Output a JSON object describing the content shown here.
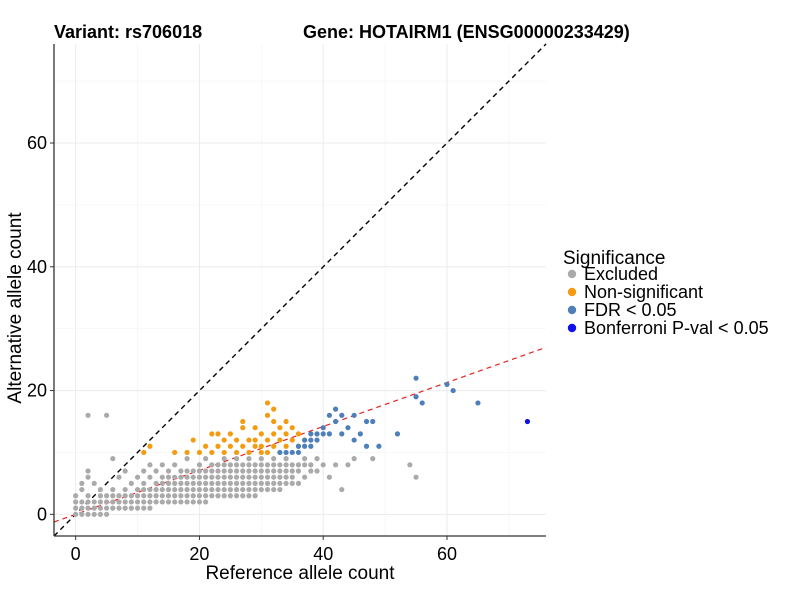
{
  "chart_data": {
    "type": "scatter",
    "title_left": "Variant: rs706018",
    "title_right": "Gene: HOTAIRM1 (ENSG00000233429)",
    "xlabel": "Reference allele count",
    "ylabel": "Alternative allele count",
    "xlim": [
      -3.5,
      76
    ],
    "ylim": [
      -3.5,
      76
    ],
    "x_ticks": [
      0,
      20,
      40,
      60
    ],
    "y_ticks": [
      0,
      20,
      40,
      60
    ],
    "grid": true,
    "reference_lines": [
      {
        "name": "identity",
        "slope": 1,
        "intercept": 0,
        "color": "#000000",
        "style": "dashed"
      },
      {
        "name": "fit",
        "slope": 0.355,
        "intercept": 0,
        "color": "#e8231f",
        "style": "dashed"
      }
    ],
    "legend": {
      "title": "Significance",
      "position": "right",
      "entries": [
        {
          "label": "Excluded",
          "color": "#aaaaaa"
        },
        {
          "label": "Non-significant",
          "color": "#f39c12"
        },
        {
          "label": "FDR < 0.05",
          "color": "#4f7fb8"
        },
        {
          "label": "Bonferroni P-val < 0.05",
          "color": "#1010e8"
        }
      ]
    },
    "series": [
      {
        "name": "Excluded",
        "color": "#aaaaaa",
        "points": [
          [
            0,
            0
          ],
          [
            0,
            1
          ],
          [
            0,
            2
          ],
          [
            0,
            3
          ],
          [
            1,
            0
          ],
          [
            1,
            1
          ],
          [
            1,
            2
          ],
          [
            1,
            4
          ],
          [
            1,
            5
          ],
          [
            2,
            0
          ],
          [
            2,
            1
          ],
          [
            2,
            2
          ],
          [
            2,
            3
          ],
          [
            2,
            6
          ],
          [
            2,
            7
          ],
          [
            2,
            16
          ],
          [
            3,
            0
          ],
          [
            3,
            1
          ],
          [
            3,
            2
          ],
          [
            3,
            5
          ],
          [
            4,
            0
          ],
          [
            4,
            1
          ],
          [
            4,
            2
          ],
          [
            4,
            3
          ],
          [
            4,
            4
          ],
          [
            5,
            0
          ],
          [
            5,
            1
          ],
          [
            5,
            2
          ],
          [
            5,
            3
          ],
          [
            5,
            16
          ],
          [
            6,
            1
          ],
          [
            6,
            2
          ],
          [
            6,
            3
          ],
          [
            6,
            4
          ],
          [
            6,
            9
          ],
          [
            7,
            1
          ],
          [
            7,
            2
          ],
          [
            7,
            3
          ],
          [
            7,
            6
          ],
          [
            8,
            1
          ],
          [
            8,
            2
          ],
          [
            8,
            3
          ],
          [
            8,
            4
          ],
          [
            8,
            7
          ],
          [
            9,
            1
          ],
          [
            9,
            2
          ],
          [
            9,
            3
          ],
          [
            9,
            5
          ],
          [
            10,
            1
          ],
          [
            10,
            2
          ],
          [
            10,
            3
          ],
          [
            10,
            4
          ],
          [
            10,
            6
          ],
          [
            11,
            1
          ],
          [
            11,
            2
          ],
          [
            11,
            3
          ],
          [
            11,
            4
          ],
          [
            11,
            5
          ],
          [
            11,
            7
          ],
          [
            12,
            1
          ],
          [
            12,
            2
          ],
          [
            12,
            3
          ],
          [
            12,
            4
          ],
          [
            12,
            6
          ],
          [
            12,
            8
          ],
          [
            13,
            2
          ],
          [
            13,
            3
          ],
          [
            13,
            4
          ],
          [
            13,
            5
          ],
          [
            13,
            7
          ],
          [
            14,
            2
          ],
          [
            14,
            3
          ],
          [
            14,
            4
          ],
          [
            14,
            5
          ],
          [
            14,
            6
          ],
          [
            14,
            8
          ],
          [
            15,
            2
          ],
          [
            15,
            3
          ],
          [
            15,
            4
          ],
          [
            15,
            5
          ],
          [
            15,
            6
          ],
          [
            15,
            7
          ],
          [
            16,
            2
          ],
          [
            16,
            3
          ],
          [
            16,
            4
          ],
          [
            16,
            5
          ],
          [
            16,
            6
          ],
          [
            16,
            8
          ],
          [
            17,
            2
          ],
          [
            17,
            3
          ],
          [
            17,
            4
          ],
          [
            17,
            5
          ],
          [
            17,
            6
          ],
          [
            17,
            7
          ],
          [
            18,
            2
          ],
          [
            18,
            3
          ],
          [
            18,
            4
          ],
          [
            18,
            5
          ],
          [
            18,
            6
          ],
          [
            18,
            7
          ],
          [
            18,
            9
          ],
          [
            19,
            2
          ],
          [
            19,
            3
          ],
          [
            19,
            4
          ],
          [
            19,
            5
          ],
          [
            19,
            6
          ],
          [
            19,
            7
          ],
          [
            20,
            2
          ],
          [
            20,
            3
          ],
          [
            20,
            4
          ],
          [
            20,
            5
          ],
          [
            20,
            6
          ],
          [
            20,
            7
          ],
          [
            20,
            8
          ],
          [
            21,
            2
          ],
          [
            21,
            3
          ],
          [
            21,
            4
          ],
          [
            21,
            5
          ],
          [
            21,
            6
          ],
          [
            21,
            7
          ],
          [
            21,
            9
          ],
          [
            22,
            3
          ],
          [
            22,
            4
          ],
          [
            22,
            5
          ],
          [
            22,
            6
          ],
          [
            22,
            7
          ],
          [
            22,
            8
          ],
          [
            23,
            3
          ],
          [
            23,
            4
          ],
          [
            23,
            5
          ],
          [
            23,
            6
          ],
          [
            23,
            7
          ],
          [
            23,
            8
          ],
          [
            24,
            3
          ],
          [
            24,
            4
          ],
          [
            24,
            5
          ],
          [
            24,
            6
          ],
          [
            24,
            7
          ],
          [
            24,
            8
          ],
          [
            24,
            9
          ],
          [
            25,
            3
          ],
          [
            25,
            4
          ],
          [
            25,
            5
          ],
          [
            25,
            6
          ],
          [
            25,
            7
          ],
          [
            25,
            8
          ],
          [
            26,
            3
          ],
          [
            26,
            4
          ],
          [
            26,
            5
          ],
          [
            26,
            6
          ],
          [
            26,
            7
          ],
          [
            26,
            8
          ],
          [
            26,
            9
          ],
          [
            27,
            3
          ],
          [
            27,
            4
          ],
          [
            27,
            5
          ],
          [
            27,
            6
          ],
          [
            27,
            7
          ],
          [
            27,
            8
          ],
          [
            28,
            3
          ],
          [
            28,
            4
          ],
          [
            28,
            5
          ],
          [
            28,
            6
          ],
          [
            28,
            7
          ],
          [
            28,
            8
          ],
          [
            28,
            9
          ],
          [
            29,
            3
          ],
          [
            29,
            4
          ],
          [
            29,
            5
          ],
          [
            29,
            6
          ],
          [
            29,
            7
          ],
          [
            29,
            8
          ],
          [
            30,
            4
          ],
          [
            30,
            5
          ],
          [
            30,
            6
          ],
          [
            30,
            7
          ],
          [
            30,
            8
          ],
          [
            30,
            9
          ],
          [
            31,
            4
          ],
          [
            31,
            5
          ],
          [
            31,
            6
          ],
          [
            31,
            7
          ],
          [
            31,
            8
          ],
          [
            32,
            4
          ],
          [
            32,
            5
          ],
          [
            32,
            6
          ],
          [
            32,
            7
          ],
          [
            32,
            8
          ],
          [
            32,
            9
          ],
          [
            33,
            4
          ],
          [
            33,
            5
          ],
          [
            33,
            6
          ],
          [
            33,
            7
          ],
          [
            33,
            8
          ],
          [
            34,
            5
          ],
          [
            34,
            6
          ],
          [
            34,
            7
          ],
          [
            34,
            8
          ],
          [
            34,
            9
          ],
          [
            35,
            5
          ],
          [
            35,
            6
          ],
          [
            35,
            7
          ],
          [
            35,
            8
          ],
          [
            36,
            5
          ],
          [
            36,
            7
          ],
          [
            36,
            8
          ],
          [
            37,
            6
          ],
          [
            37,
            8
          ],
          [
            37,
            9
          ],
          [
            38,
            7
          ],
          [
            38,
            8
          ],
          [
            39,
            7
          ],
          [
            39,
            9
          ],
          [
            40,
            8
          ],
          [
            41,
            6
          ],
          [
            42,
            8
          ],
          [
            43,
            4
          ],
          [
            44,
            8
          ],
          [
            45,
            9
          ],
          [
            48,
            9
          ],
          [
            54,
            8
          ],
          [
            55,
            6
          ]
        ]
      },
      {
        "name": "Non-significant",
        "color": "#f39c12",
        "points": [
          [
            11,
            10
          ],
          [
            12,
            11
          ],
          [
            16,
            10
          ],
          [
            18,
            10
          ],
          [
            19,
            12
          ],
          [
            20,
            10
          ],
          [
            21,
            11
          ],
          [
            22,
            10
          ],
          [
            22,
            13
          ],
          [
            23,
            11
          ],
          [
            23,
            13
          ],
          [
            24,
            10
          ],
          [
            24,
            12
          ],
          [
            25,
            11
          ],
          [
            25,
            13
          ],
          [
            26,
            10
          ],
          [
            26,
            12
          ],
          [
            27,
            11
          ],
          [
            27,
            14
          ],
          [
            27,
            15
          ],
          [
            28,
            10
          ],
          [
            28,
            12
          ],
          [
            29,
            11
          ],
          [
            29,
            12
          ],
          [
            29,
            14
          ],
          [
            30,
            10
          ],
          [
            30,
            11
          ],
          [
            30,
            13
          ],
          [
            31,
            10
          ],
          [
            31,
            12
          ],
          [
            31,
            16
          ],
          [
            31,
            18
          ],
          [
            32,
            11
          ],
          [
            32,
            13
          ],
          [
            32,
            15
          ],
          [
            32,
            17
          ],
          [
            33,
            12
          ],
          [
            33,
            14
          ],
          [
            34,
            11
          ],
          [
            34,
            13
          ],
          [
            34,
            15
          ],
          [
            35,
            12
          ],
          [
            35,
            14
          ],
          [
            36,
            11
          ],
          [
            36,
            13
          ],
          [
            37,
            12
          ]
        ]
      },
      {
        "name": "FDR < 0.05",
        "color": "#4f7fb8",
        "points": [
          [
            33,
            10
          ],
          [
            34,
            10
          ],
          [
            35,
            10
          ],
          [
            36,
            10
          ],
          [
            36,
            11
          ],
          [
            37,
            11
          ],
          [
            37,
            12
          ],
          [
            38,
            11
          ],
          [
            38,
            12
          ],
          [
            38,
            13
          ],
          [
            39,
            12
          ],
          [
            39,
            13
          ],
          [
            40,
            13
          ],
          [
            40,
            14
          ],
          [
            41,
            13
          ],
          [
            41,
            16
          ],
          [
            42,
            15
          ],
          [
            42,
            17
          ],
          [
            43,
            16
          ],
          [
            43,
            13
          ],
          [
            44,
            14
          ],
          [
            45,
            16
          ],
          [
            45,
            12
          ],
          [
            46,
            13
          ],
          [
            47,
            15
          ],
          [
            47,
            11
          ],
          [
            48,
            15
          ],
          [
            49,
            11
          ],
          [
            52,
            13
          ],
          [
            55,
            19
          ],
          [
            55,
            22
          ],
          [
            56,
            18
          ],
          [
            60,
            21
          ],
          [
            61,
            20
          ],
          [
            65,
            18
          ]
        ]
      },
      {
        "name": "Bonferroni P-val < 0.05",
        "color": "#1010e8",
        "points": [
          [
            73,
            15
          ]
        ]
      }
    ]
  }
}
